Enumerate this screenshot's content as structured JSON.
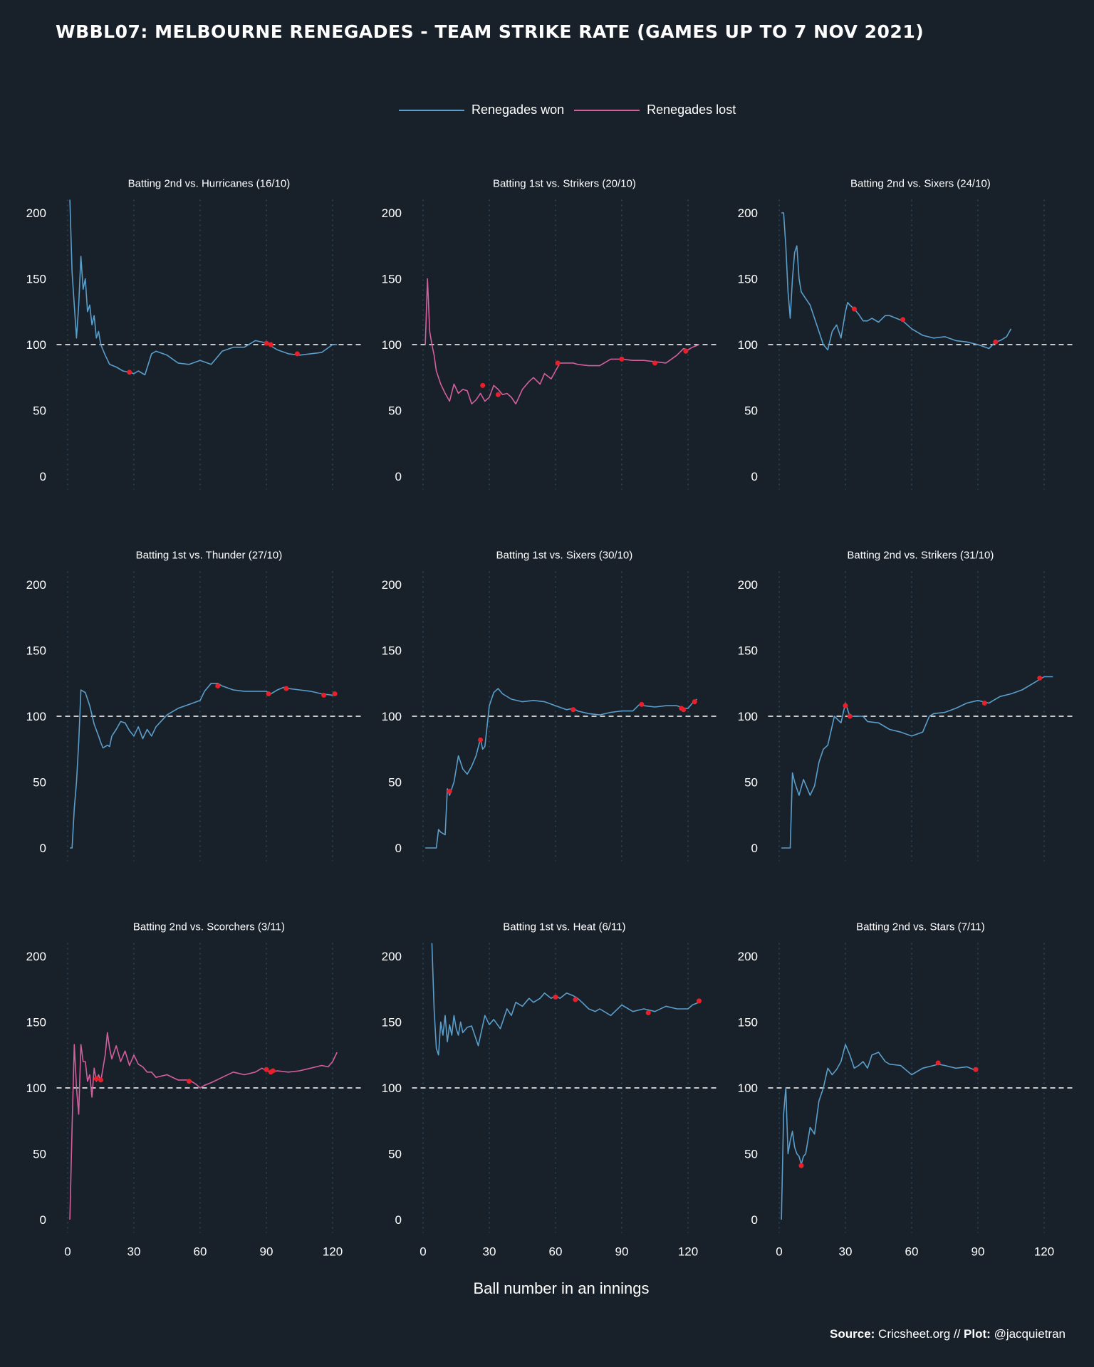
{
  "title": "WBBL07: MELBOURNE RENEGADES - TEAM STRIKE RATE (GAMES UP TO 7 NOV 2021)",
  "legend": [
    {
      "label": "Renegades won",
      "color": "#5a9ec9"
    },
    {
      "label": "Renegades lost",
      "color": "#d45f9e"
    }
  ],
  "xlabel": "Ball number in an innings",
  "source": {
    "source_label": "Source:",
    "source_value": "Cricsheet.org //",
    "plot_label": "Plot:",
    "plot_value": "@jacquietran"
  },
  "colors": {
    "background": "#18202a",
    "won": "#5a9ec9",
    "lost": "#d45f9e",
    "wicket": "#e8202a",
    "reference": "#ffffff",
    "grid": "#2c4a5e"
  },
  "chart_data": [
    {
      "type": "line",
      "title": "Batting 2nd vs. Hurricanes (16/10)",
      "result": "won",
      "x_ticks": [
        0,
        30,
        60,
        90,
        120
      ],
      "y_ticks": [
        0,
        50,
        100,
        150,
        200
      ],
      "xlim": [
        -5,
        133
      ],
      "ylim": [
        -10,
        210
      ],
      "reference_y": 100,
      "x": [
        1,
        2,
        3,
        4,
        5,
        6,
        7,
        8,
        9,
        10,
        11,
        12,
        13,
        14,
        15,
        17,
        19,
        22,
        25,
        28,
        30,
        32,
        35,
        38,
        40,
        45,
        50,
        55,
        60,
        65,
        70,
        75,
        80,
        85,
        88,
        90,
        92,
        95,
        100,
        105,
        110,
        115,
        120,
        122
      ],
      "y": [
        210,
        155,
        130,
        105,
        130,
        167,
        142,
        150,
        125,
        130,
        115,
        122,
        105,
        110,
        100,
        92,
        85,
        83,
        80,
        79,
        78,
        80,
        77,
        93,
        95,
        92,
        86,
        85,
        88,
        85,
        95,
        98,
        98,
        103,
        102,
        101,
        99,
        96,
        93,
        92,
        93,
        94,
        100,
        100
      ],
      "wickets_x": [
        28,
        90,
        92,
        104
      ],
      "wickets_y": [
        79,
        101,
        100,
        93
      ]
    },
    {
      "type": "line",
      "title": "Batting 1st vs. Strikers (20/10)",
      "result": "lost",
      "x_ticks": [
        0,
        30,
        60,
        90,
        120
      ],
      "y_ticks": [
        0,
        50,
        100,
        150,
        200
      ],
      "xlim": [
        -5,
        133
      ],
      "ylim": [
        -10,
        210
      ],
      "reference_y": 100,
      "x": [
        1,
        2,
        3,
        4,
        5,
        6,
        7,
        8,
        10,
        12,
        14,
        16,
        18,
        20,
        22,
        24,
        26,
        28,
        30,
        32,
        34,
        36,
        38,
        40,
        42,
        45,
        48,
        50,
        53,
        55,
        58,
        60,
        62,
        65,
        68,
        70,
        75,
        80,
        85,
        90,
        95,
        100,
        105,
        110,
        115,
        118,
        120,
        122,
        125
      ],
      "y": [
        100,
        150,
        110,
        100,
        92,
        80,
        75,
        70,
        63,
        57,
        70,
        63,
        66,
        65,
        55,
        58,
        63,
        57,
        60,
        69,
        66,
        62,
        63,
        60,
        55,
        66,
        72,
        75,
        70,
        78,
        74,
        80,
        86,
        86,
        86,
        85,
        84,
        84,
        89,
        89,
        88,
        88,
        87,
        86,
        92,
        97,
        96,
        98,
        100
      ],
      "wickets_x": [
        27,
        34,
        61,
        90,
        105,
        119
      ],
      "wickets_y": [
        69,
        62,
        86,
        89,
        86,
        95
      ]
    },
    {
      "type": "line",
      "title": "Batting 2nd vs. Sixers (24/10)",
      "result": "won",
      "x_ticks": [
        0,
        30,
        60,
        90,
        120
      ],
      "y_ticks": [
        0,
        50,
        100,
        150,
        200
      ],
      "xlim": [
        -5,
        133
      ],
      "ylim": [
        -10,
        210
      ],
      "reference_y": 100,
      "x": [
        1,
        2,
        3,
        4,
        5,
        6,
        7,
        8,
        9,
        10,
        12,
        14,
        16,
        18,
        20,
        22,
        24,
        26,
        28,
        30,
        31,
        32,
        34,
        36,
        38,
        40,
        42,
        45,
        48,
        50,
        53,
        56,
        60,
        65,
        70,
        75,
        80,
        85,
        90,
        95,
        98,
        100,
        103,
        105
      ],
      "y": [
        200,
        200,
        175,
        140,
        120,
        150,
        170,
        175,
        150,
        140,
        135,
        130,
        120,
        110,
        100,
        96,
        110,
        115,
        105,
        125,
        132,
        130,
        127,
        123,
        118,
        118,
        120,
        117,
        122,
        122,
        120,
        118,
        112,
        107,
        105,
        106,
        103,
        102,
        100,
        97,
        102,
        103,
        106,
        112
      ],
      "wickets_x": [
        34,
        56,
        98
      ],
      "wickets_y": [
        127,
        119,
        102
      ]
    },
    {
      "type": "line",
      "title": "Batting 1st vs. Thunder (27/10)",
      "result": "won",
      "x_ticks": [
        0,
        30,
        60,
        90,
        120
      ],
      "y_ticks": [
        0,
        50,
        100,
        150,
        200
      ],
      "xlim": [
        -5,
        133
      ],
      "ylim": [
        -10,
        210
      ],
      "reference_y": 100,
      "x": [
        1,
        2,
        3,
        4,
        5,
        6,
        7,
        8,
        10,
        12,
        14,
        15,
        16,
        18,
        19,
        20,
        22,
        24,
        26,
        28,
        30,
        32,
        34,
        36,
        38,
        40,
        45,
        50,
        55,
        60,
        62,
        65,
        68,
        70,
        75,
        80,
        85,
        90,
        92,
        95,
        98,
        100,
        105,
        110,
        115,
        120,
        122
      ],
      "y": [
        0,
        0,
        30,
        50,
        80,
        120,
        119,
        118,
        108,
        94,
        85,
        80,
        76,
        78,
        77,
        85,
        90,
        96,
        95,
        89,
        85,
        92,
        83,
        90,
        85,
        92,
        101,
        106,
        109,
        112,
        119,
        125,
        125,
        123,
        120,
        119,
        119,
        119,
        117,
        120,
        122,
        121,
        120,
        119,
        117,
        116,
        117
      ],
      "wickets_x": [
        68,
        91,
        99,
        116,
        121
      ],
      "wickets_y": [
        123,
        117,
        121,
        116,
        117
      ],
      "series_color": "#5a9ec9"
    },
    {
      "type": "line",
      "title": "Batting 1st vs. Sixers (30/10)",
      "result": "won",
      "x_ticks": [
        0,
        30,
        60,
        90,
        120
      ],
      "y_ticks": [
        0,
        50,
        100,
        150,
        200
      ],
      "xlim": [
        -5,
        133
      ],
      "ylim": [
        -10,
        210
      ],
      "reference_y": 100,
      "x": [
        1,
        4,
        6,
        7,
        8,
        10,
        11,
        12,
        14,
        16,
        17,
        18,
        20,
        22,
        24,
        26,
        27,
        28,
        30,
        32,
        34,
        36,
        40,
        45,
        50,
        55,
        60,
        65,
        68,
        70,
        75,
        80,
        85,
        90,
        95,
        98,
        100,
        105,
        110,
        115,
        118,
        120,
        122,
        124
      ],
      "y": [
        0,
        0,
        0,
        14,
        12,
        10,
        45,
        40,
        50,
        70,
        65,
        60,
        56,
        62,
        70,
        83,
        75,
        77,
        108,
        118,
        121,
        117,
        113,
        111,
        112,
        111,
        108,
        105,
        106,
        104,
        102,
        101,
        103,
        104,
        104,
        109,
        108,
        107,
        108,
        108,
        106,
        106,
        110,
        113
      ],
      "wickets_x": [
        12,
        26,
        68,
        99,
        117,
        118,
        123
      ],
      "wickets_y": [
        43,
        82,
        105,
        109,
        106,
        105,
        111
      ]
    },
    {
      "type": "line",
      "title": "Batting 2nd vs. Strikers (31/10)",
      "result": "won",
      "x_ticks": [
        0,
        30,
        60,
        90,
        120
      ],
      "y_ticks": [
        0,
        50,
        100,
        150,
        200
      ],
      "xlim": [
        -5,
        133
      ],
      "ylim": [
        -10,
        210
      ],
      "reference_y": 100,
      "x": [
        1,
        2,
        5,
        6,
        7,
        9,
        11,
        14,
        16,
        18,
        20,
        22,
        25,
        28,
        30,
        31,
        32,
        34,
        36,
        38,
        40,
        45,
        50,
        55,
        60,
        65,
        68,
        70,
        75,
        80,
        85,
        90,
        95,
        100,
        105,
        110,
        115,
        120,
        124
      ],
      "y": [
        0,
        0,
        0,
        57,
        50,
        40,
        52,
        40,
        47,
        65,
        75,
        78,
        100,
        95,
        110,
        105,
        100,
        100,
        100,
        100,
        96,
        95,
        90,
        88,
        85,
        88,
        100,
        102,
        103,
        106,
        110,
        112,
        110,
        115,
        117,
        120,
        125,
        130,
        130
      ],
      "wickets_x": [
        30,
        32,
        93,
        118
      ],
      "wickets_y": [
        108,
        100,
        110,
        129
      ]
    },
    {
      "type": "line",
      "title": "Batting 2nd vs. Scorchers (3/11)",
      "result": "lost",
      "x_ticks": [
        0,
        30,
        60,
        90,
        120
      ],
      "y_ticks": [
        0,
        50,
        100,
        150,
        200
      ],
      "xlim": [
        -5,
        133
      ],
      "ylim": [
        -10,
        210
      ],
      "reference_y": 100,
      "x": [
        1,
        2,
        3,
        4,
        5,
        6,
        7,
        8,
        9,
        10,
        11,
        12,
        13,
        14,
        15,
        16,
        17,
        18,
        19,
        20,
        22,
        24,
        26,
        28,
        30,
        32,
        34,
        36,
        38,
        40,
        45,
        50,
        55,
        58,
        60,
        62,
        65,
        70,
        75,
        80,
        85,
        88,
        90,
        92,
        95,
        100,
        105,
        110,
        115,
        118,
        120,
        122
      ],
      "y": [
        0,
        70,
        133,
        100,
        80,
        133,
        120,
        120,
        105,
        110,
        93,
        115,
        105,
        110,
        105,
        115,
        125,
        142,
        130,
        122,
        132,
        120,
        128,
        117,
        125,
        118,
        116,
        112,
        112,
        108,
        110,
        106,
        106,
        103,
        100,
        102,
        104,
        108,
        112,
        110,
        112,
        115,
        113,
        112,
        113,
        112,
        113,
        115,
        117,
        116,
        120,
        127
      ],
      "wickets_x": [
        13,
        15,
        55,
        90,
        92,
        93
      ],
      "wickets_y": [
        107,
        106,
        105,
        114,
        112,
        113
      ]
    },
    {
      "type": "line",
      "title": "Batting 1st vs. Heat (6/11)",
      "result": "won",
      "x_ticks": [
        0,
        30,
        60,
        90,
        120
      ],
      "y_ticks": [
        0,
        50,
        100,
        150,
        200
      ],
      "xlim": [
        -5,
        133
      ],
      "ylim": [
        -10,
        210
      ],
      "reference_y": 100,
      "x": [
        4,
        5,
        6,
        7,
        8,
        9,
        10,
        11,
        12,
        13,
        14,
        15,
        16,
        17,
        18,
        20,
        22,
        25,
        28,
        30,
        32,
        35,
        38,
        40,
        42,
        45,
        48,
        50,
        53,
        55,
        58,
        60,
        62,
        65,
        68,
        70,
        72,
        75,
        78,
        80,
        85,
        90,
        95,
        100,
        105,
        110,
        115,
        120,
        122,
        125
      ],
      "y": [
        210,
        160,
        130,
        125,
        150,
        140,
        155,
        135,
        148,
        140,
        155,
        145,
        140,
        150,
        142,
        146,
        147,
        132,
        155,
        148,
        152,
        145,
        160,
        155,
        165,
        162,
        168,
        165,
        168,
        172,
        168,
        170,
        168,
        172,
        170,
        168,
        165,
        160,
        158,
        160,
        155,
        163,
        158,
        160,
        158,
        162,
        160,
        160,
        163,
        165
      ],
      "wickets_x": [
        60,
        69,
        102,
        125
      ],
      "wickets_y": [
        169,
        167,
        157,
        166
      ]
    },
    {
      "type": "line",
      "title": "Batting 2nd vs. Stars (7/11)",
      "result": "won",
      "x_ticks": [
        0,
        30,
        60,
        90,
        120
      ],
      "y_ticks": [
        0,
        50,
        100,
        150,
        200
      ],
      "xlim": [
        -5,
        133
      ],
      "ylim": [
        -10,
        210
      ],
      "reference_y": 100,
      "x": [
        1,
        2,
        3,
        4,
        5,
        6,
        7,
        8,
        9,
        10,
        11,
        12,
        14,
        16,
        18,
        20,
        22,
        24,
        26,
        28,
        30,
        32,
        34,
        36,
        38,
        40,
        42,
        45,
        48,
        50,
        55,
        60,
        65,
        70,
        72,
        75,
        80,
        85,
        88,
        90
      ],
      "y": [
        0,
        80,
        100,
        50,
        60,
        67,
        55,
        50,
        48,
        42,
        48,
        50,
        70,
        65,
        90,
        100,
        115,
        110,
        114,
        120,
        133,
        125,
        115,
        117,
        120,
        115,
        125,
        127,
        120,
        118,
        117,
        110,
        115,
        117,
        118,
        117,
        115,
        116,
        114,
        113
      ],
      "wickets_x": [
        10,
        72,
        89
      ],
      "wickets_y": [
        41,
        119,
        114
      ]
    }
  ]
}
